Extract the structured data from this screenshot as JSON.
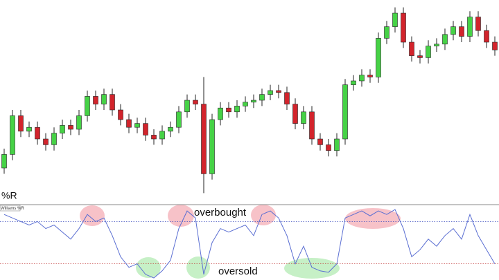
{
  "chart_data": [
    {
      "type": "candlestick",
      "up_color": "#46d246",
      "down_color": "#d2242c",
      "outline_color": "#222222",
      "ylim": [
        0,
        100
      ],
      "open": [
        15,
        22,
        42,
        34,
        36,
        30,
        27,
        33,
        37,
        35,
        42,
        52,
        48,
        53,
        45,
        40,
        36,
        38,
        32,
        30,
        34,
        36,
        44,
        50,
        48,
        12,
        40,
        46,
        44,
        47,
        49,
        50,
        53,
        55,
        54,
        48,
        38,
        44,
        30,
        27,
        24,
        30,
        58,
        60,
        63,
        62,
        82,
        88,
        95,
        80,
        73,
        72,
        78,
        79,
        84,
        88,
        83,
        93,
        86,
        80
      ],
      "high": [
        25,
        45,
        45,
        39,
        39,
        33,
        36,
        40,
        40,
        45,
        55,
        55,
        56,
        56,
        48,
        43,
        41,
        41,
        35,
        37,
        39,
        47,
        53,
        53,
        62,
        43,
        49,
        49,
        50,
        52,
        53,
        56,
        58,
        58,
        57,
        51,
        47,
        47,
        33,
        30,
        33,
        61,
        63,
        66,
        66,
        85,
        91,
        98,
        98,
        83,
        76,
        81,
        82,
        87,
        91,
        91,
        96,
        96,
        89,
        83
      ],
      "low": [
        12,
        19,
        31,
        31,
        27,
        24,
        24,
        30,
        32,
        32,
        39,
        45,
        45,
        42,
        37,
        33,
        33,
        29,
        27,
        27,
        31,
        33,
        41,
        45,
        2,
        9,
        37,
        41,
        41,
        44,
        46,
        47,
        50,
        51,
        45,
        35,
        35,
        27,
        24,
        21,
        21,
        27,
        55,
        57,
        59,
        59,
        79,
        85,
        77,
        70,
        69,
        69,
        75,
        76,
        81,
        80,
        80,
        83,
        77,
        73
      ],
      "close": [
        22,
        42,
        34,
        36,
        30,
        27,
        33,
        37,
        35,
        42,
        52,
        48,
        53,
        45,
        40,
        36,
        38,
        32,
        30,
        34,
        36,
        44,
        50,
        48,
        12,
        40,
        46,
        44,
        47,
        49,
        50,
        53,
        55,
        54,
        48,
        38,
        44,
        30,
        27,
        24,
        30,
        58,
        60,
        63,
        62,
        82,
        88,
        95,
        80,
        73,
        72,
        78,
        79,
        84,
        88,
        83,
        93,
        86,
        80,
        76
      ]
    },
    {
      "type": "line",
      "title": "%R",
      "indicator_label": "Williams %R",
      "color": "#5a6ed2",
      "ylim": [
        -100,
        0
      ],
      "levels": [
        {
          "value": -20,
          "label": "overbought",
          "color": "#4050c0"
        },
        {
          "value": -80,
          "label": "oversold",
          "color": "#c03030"
        }
      ],
      "values": [
        -10,
        -15,
        -20,
        -25,
        -20,
        -30,
        -25,
        -35,
        -45,
        -30,
        -10,
        -20,
        -15,
        -40,
        -70,
        -85,
        -80,
        -95,
        -100,
        -90,
        -75,
        -30,
        -5,
        -15,
        -95,
        -50,
        -30,
        -35,
        -30,
        -25,
        -40,
        -10,
        -5,
        -15,
        -40,
        -80,
        -55,
        -85,
        -90,
        -92,
        -80,
        -15,
        -10,
        -5,
        -12,
        -5,
        -10,
        -3,
        -30,
        -70,
        -60,
        -45,
        -55,
        -40,
        -30,
        -45,
        -10,
        -40,
        -60,
        -80
      ]
    }
  ]
}
